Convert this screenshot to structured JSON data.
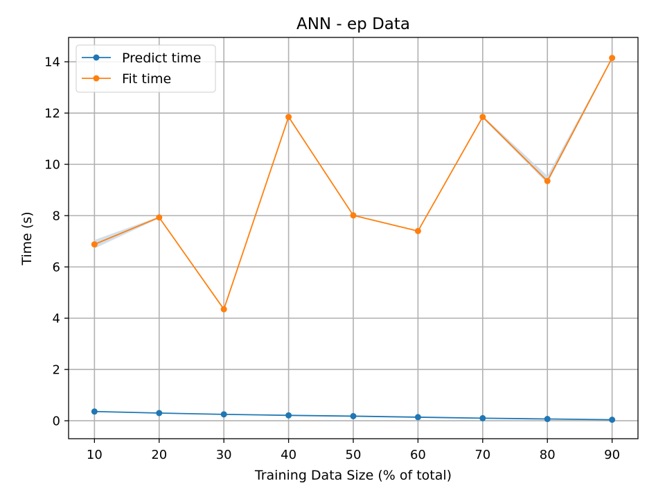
{
  "chart_data": {
    "type": "line",
    "title": "ANN - ep Data",
    "xlabel": "Training Data Size (% of total)",
    "ylabel": "Time (s)",
    "x": [
      10,
      20,
      30,
      40,
      50,
      60,
      70,
      80,
      90
    ],
    "xlim": [
      6,
      94
    ],
    "ylim": [
      -0.7,
      14.95
    ],
    "xticks": [
      10,
      20,
      30,
      40,
      50,
      60,
      70,
      80,
      90
    ],
    "yticks": [
      0,
      2,
      4,
      6,
      8,
      10,
      12,
      14
    ],
    "grid": true,
    "legend_position": "upper-left",
    "series": [
      {
        "name": "Predict time",
        "color": "#1f77b4",
        "values": [
          0.36,
          0.3,
          0.25,
          0.21,
          0.18,
          0.14,
          0.1,
          0.07,
          0.04
        ],
        "band_color": "#c9d9e8",
        "band_lower": [
          0.34,
          0.29,
          0.24,
          0.2,
          0.17,
          0.13,
          0.09,
          0.06,
          0.03
        ],
        "band_upper": [
          0.38,
          0.31,
          0.26,
          0.22,
          0.19,
          0.15,
          0.11,
          0.08,
          0.05
        ]
      },
      {
        "name": "Fit time",
        "color": "#ff7f0e",
        "values": [
          6.88,
          7.93,
          4.35,
          11.85,
          8.01,
          7.4,
          11.85,
          9.35,
          14.15
        ],
        "band_color": "#c9d9e8",
        "band_lower": [
          6.72,
          7.9,
          4.33,
          11.8,
          7.99,
          7.38,
          11.8,
          9.25,
          14.12
        ],
        "band_upper": [
          7.05,
          7.96,
          4.37,
          11.9,
          8.03,
          7.42,
          11.9,
          9.55,
          14.18
        ]
      }
    ]
  }
}
